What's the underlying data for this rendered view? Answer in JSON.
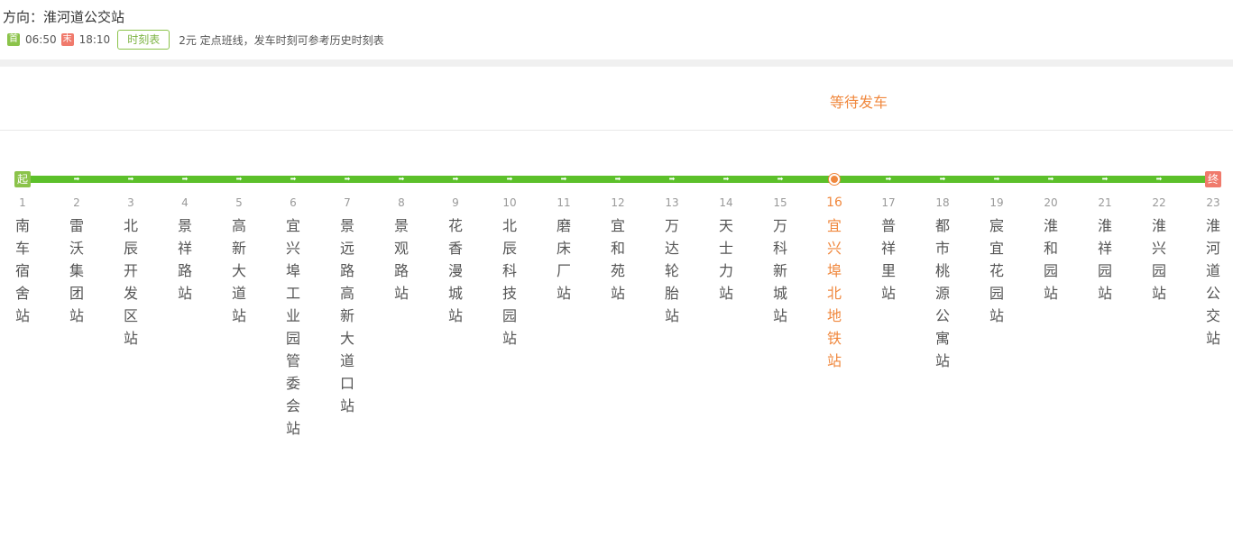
{
  "header": {
    "direction": "方向：淮河道公交站",
    "first_tag": "首",
    "first_time": "06:50",
    "last_tag": "末",
    "last_time": "18:10",
    "timetable_label": "时刻表",
    "note": "2元 定点班线，发车时刻可参考历史时刻表"
  },
  "status": {
    "text": "等待发车"
  },
  "route": {
    "start_tag": "起",
    "end_tag": "终",
    "arrow_glyph": "➡",
    "current_index": 15,
    "colors": {
      "line": "#5cc02a",
      "current": "#f0883e",
      "start": "#8bc34a",
      "end": "#f07a6c"
    },
    "stops": [
      {
        "num": "1",
        "name": "南车宿舍站"
      },
      {
        "num": "2",
        "name": "雷沃集团站"
      },
      {
        "num": "3",
        "name": "北辰开发区站"
      },
      {
        "num": "4",
        "name": "景祥路站"
      },
      {
        "num": "5",
        "name": "高新大道站"
      },
      {
        "num": "6",
        "name": "宜兴埠工业园管委会站"
      },
      {
        "num": "7",
        "name": "景远路高新大道口站"
      },
      {
        "num": "8",
        "name": "景观路站"
      },
      {
        "num": "9",
        "name": "花香漫城站"
      },
      {
        "num": "10",
        "name": "北辰科技园站"
      },
      {
        "num": "11",
        "name": "磨床厂站"
      },
      {
        "num": "12",
        "name": "宜和苑站"
      },
      {
        "num": "13",
        "name": "万达轮胎站"
      },
      {
        "num": "14",
        "name": "天士力站"
      },
      {
        "num": "15",
        "name": "万科新城站"
      },
      {
        "num": "16",
        "name": "宜兴埠北地铁站"
      },
      {
        "num": "17",
        "name": "普祥里站"
      },
      {
        "num": "18",
        "name": "都市桃源公寓站"
      },
      {
        "num": "19",
        "name": "宸宜花园站"
      },
      {
        "num": "20",
        "name": "淮和园站"
      },
      {
        "num": "21",
        "name": "淮祥园站"
      },
      {
        "num": "22",
        "name": "淮兴园站"
      },
      {
        "num": "23",
        "name": "淮河道公交站"
      }
    ]
  }
}
